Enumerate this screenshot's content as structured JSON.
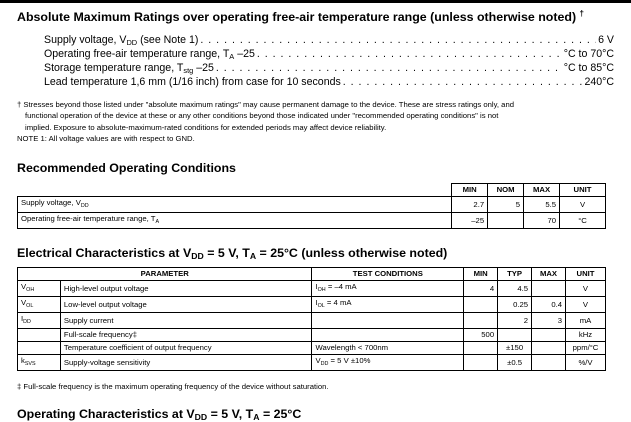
{
  "section1": {
    "title": "Absolute Maximum Ratings over operating free-air temperature range (unless otherwise noted)",
    "title_mark": "†",
    "ratings": [
      {
        "label": "Supply voltage, V",
        "sub": "DD",
        "suffix": " (see Note 1)",
        "value": "6 V"
      },
      {
        "label": "Operating free-air temperature range, T",
        "sub": "A",
        "suffix": " –25",
        "value": "°C to 70°C"
      },
      {
        "label": "Storage temperature range, T",
        "sub": "stg",
        "suffix": " –25",
        "value": "°C to 85°C"
      },
      {
        "label": "Lead temperature 1,6 mm (1/16 inch) from case for 10 seconds",
        "sub": "",
        "suffix": "",
        "value": "240°C"
      }
    ],
    "footnote_dagger": "† Stresses beyond those listed under \"absolute maximum ratings\" may cause permanent damage to the device. These are stress ratings only, and",
    "footnote_dagger_2": "functional operation of the device at these or any other conditions beyond those indicated under \"recommended operating conditions\" is not",
    "footnote_dagger_3": "implied. Exposure to absolute-maximum-rated conditions for extended periods may affect device reliability.",
    "note1": "NOTE 1:  All voltage values are with respect to GND."
  },
  "section2": {
    "title": "Recommended Operating Conditions",
    "headers": [
      "MIN",
      "NOM",
      "MAX",
      "UNIT"
    ],
    "rows": [
      {
        "param": "Supply voltage, V",
        "sub": "DD",
        "min": "2.7",
        "nom": "5",
        "max": "5.5",
        "unit": "V"
      },
      {
        "param": "Operating free-air temperature range, T",
        "sub": "A",
        "min": "–25",
        "nom": "",
        "max": "70",
        "unit": "°C"
      }
    ]
  },
  "section3": {
    "title_pre": "Electrical Characteristics at V",
    "title_sub1": "DD",
    "title_mid": " = 5 V, T",
    "title_sub2": "A",
    "title_post": " = 25°C (unless otherwise noted)",
    "headers": [
      "PARAMETER",
      "TEST CONDITIONS",
      "MIN",
      "TYP",
      "MAX",
      "UNIT"
    ],
    "rows": [
      {
        "sym": "V",
        "symsub": "OH",
        "param": "High-level output voltage",
        "cond": "I",
        "condsub": "OH",
        "condpost": " = –4 mA",
        "min": "4",
        "typ": "4.5",
        "max": "",
        "unit": "V"
      },
      {
        "sym": "V",
        "symsub": "OL",
        "param": "Low-level output voltage",
        "cond": "I",
        "condsub": "OL",
        "condpost": " = 4 mA",
        "min": "",
        "typ": "0.25",
        "max": "0.4",
        "unit": "V"
      },
      {
        "sym": "I",
        "symsub": "DD",
        "param": "Supply current",
        "cond": "",
        "condsub": "",
        "condpost": "",
        "min": "",
        "typ": "2",
        "max": "3",
        "unit": "mA"
      },
      {
        "sym": "",
        "symsub": "",
        "param": "Full-scale frequency‡",
        "cond": "",
        "condsub": "",
        "condpost": "",
        "min": "500",
        "typ": "",
        "max": "",
        "unit": "kHz"
      },
      {
        "sym": "",
        "symsub": "",
        "param": "Temperature coefficient of output frequency",
        "cond": "Wavelength < 700nm",
        "condsub": "",
        "condpost": "",
        "min": "",
        "typ": "±150",
        "max": "",
        "unit": "ppm/°C"
      },
      {
        "sym": "k",
        "symsub": "SVS",
        "param": "Supply-voltage sensitivity",
        "cond": "V",
        "condsub": "DD",
        "condpost": " = 5 V ±10%",
        "min": "",
        "typ": "±0.5",
        "max": "",
        "unit": "%/V"
      }
    ],
    "footnote": "‡ Full-scale frequency is the maximum operating frequency of the device without saturation."
  },
  "section4": {
    "title_pre": "Operating Characteristics at V",
    "title_sub1": "DD",
    "title_mid": " = 5 V, T",
    "title_sub2": "A",
    "title_post": " = 25°C"
  }
}
